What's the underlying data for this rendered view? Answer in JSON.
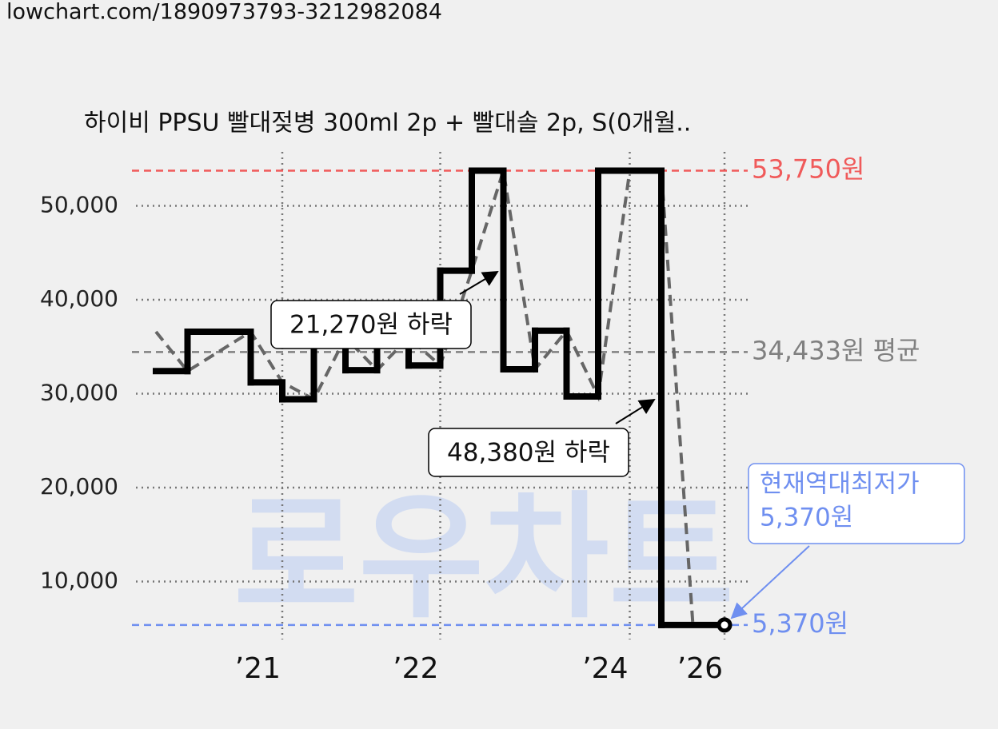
{
  "header": {
    "url": "lowchart.com/1890973793-3212982084"
  },
  "chart_data": {
    "type": "step",
    "title": "하이비 PPSU 빨대젖병 300ml 2p + 빨대솔 2p, S(0개월..",
    "watermark": "로우차트",
    "xlim": [
      0,
      18
    ],
    "xticks": [
      {
        "value": 4,
        "label": "’21"
      },
      {
        "value": 9,
        "label": "’22"
      },
      {
        "value": 15,
        "label": "’24"
      },
      {
        "value": 18,
        "label": "’26"
      }
    ],
    "ylim": [
      3000,
      56000
    ],
    "yticks": [
      {
        "value": 10000,
        "label": "10,000"
      },
      {
        "value": 20000,
        "label": "20,000"
      },
      {
        "value": 30000,
        "label": "30,000"
      },
      {
        "value": 40000,
        "label": "40,000"
      },
      {
        "value": 50000,
        "label": "50,000"
      }
    ],
    "grid": true,
    "series": [
      {
        "color": "#000000",
        "style": "solid",
        "x": [
          0,
          1,
          3,
          4,
          5,
          6,
          7,
          8,
          9,
          10,
          11,
          12,
          13,
          14,
          16
        ],
        "values": [
          32400,
          36600,
          31200,
          29400,
          36000,
          32500,
          36000,
          33000,
          43100,
          53750,
          32600,
          36700,
          29700,
          53750,
          5370
        ]
      },
      {
        "color": "#666666",
        "style": "dashed",
        "x": [
          0,
          1,
          3,
          4,
          5,
          6,
          7,
          8,
          9,
          10,
          11,
          12,
          13,
          14,
          15,
          16,
          17,
          18
        ],
        "values": [
          36600,
          32400,
          36600,
          31200,
          29400,
          36000,
          32500,
          36000,
          33000,
          43100,
          53750,
          32600,
          36700,
          29700,
          53750,
          53750,
          5370,
          5370
        ]
      }
    ],
    "reference_lines": [
      {
        "value": 53750,
        "label": "53,750원",
        "color": "#f05a5a"
      },
      {
        "value": 34433,
        "label": "34,433원 평균",
        "color": "#808080"
      },
      {
        "value": 5370,
        "label": "5,370원",
        "color": "#6f8ff0"
      }
    ],
    "annotations": [
      {
        "text": "21,270원 하락"
      },
      {
        "text": "48,380원 하락"
      }
    ],
    "callout": {
      "lines": [
        "현재역대최저가",
        "5,370원"
      ],
      "color": "#6f8ff0"
    }
  }
}
